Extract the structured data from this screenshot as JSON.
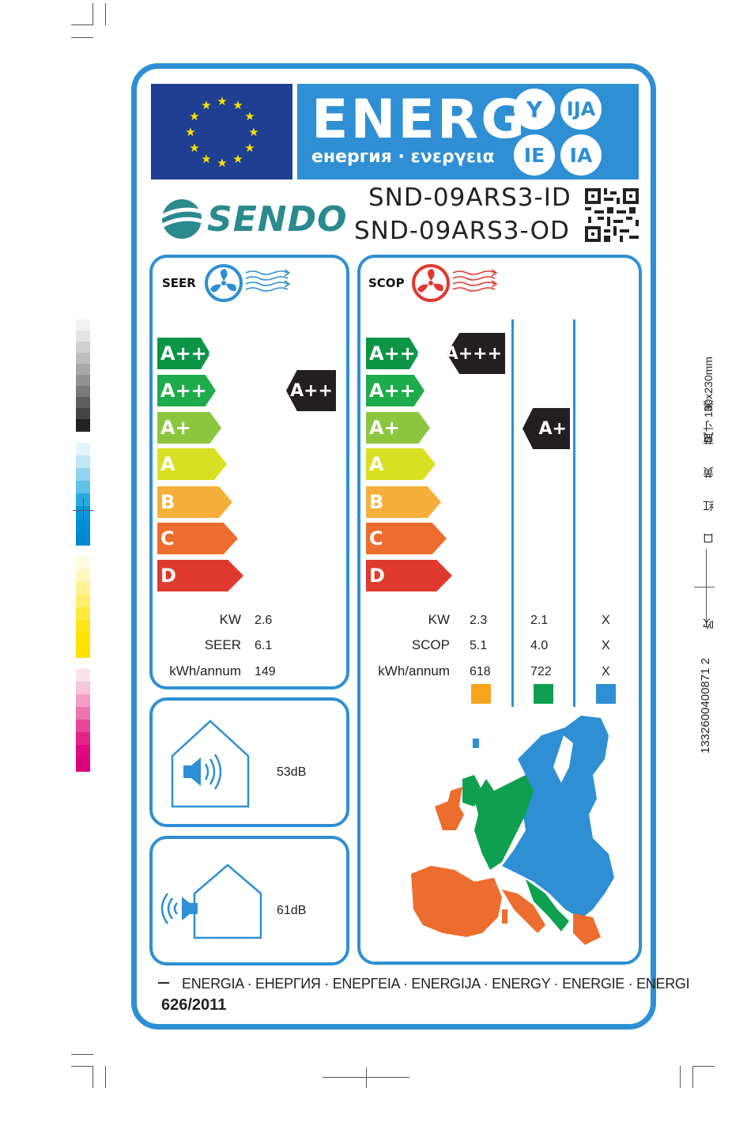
{
  "header": {
    "energy_word": "ENERG",
    "energy_subtitle": "енергия · ενεργεια",
    "suffixes": [
      "Y",
      "IJA",
      "IE",
      "IA"
    ],
    "eu_flag_color": "#1f3f93",
    "banner_color": "#2e8fd4"
  },
  "brand": {
    "name": "SENDO"
  },
  "models": {
    "indoor": "SND-09ARS3-ID",
    "outdoor": "SND-09ARS3-OD"
  },
  "scale": [
    {
      "label": "A+++",
      "color": "#0c9447"
    },
    {
      "label": "A++",
      "color": "#1eab4b"
    },
    {
      "label": "A+",
      "color": "#8cc63f"
    },
    {
      "label": "A",
      "color": "#d9e021"
    },
    {
      "label": "B",
      "color": "#f6af3b"
    },
    {
      "label": "C",
      "color": "#ec6d2d"
    },
    {
      "label": "D",
      "color": "#e03a30"
    }
  ],
  "seer": {
    "title": "SEER",
    "rating": "A++",
    "labels": {
      "kw": "KW",
      "efficiency": "SEER",
      "energy": "kWh/annum"
    },
    "values": {
      "kw": "2.6",
      "efficiency": "6.1",
      "energy": "149"
    }
  },
  "scop": {
    "title": "SCOP",
    "ratings": [
      "A+++",
      "A+"
    ],
    "labels": {
      "kw": "KW",
      "efficiency": "SCOP",
      "energy": "kWh/annum"
    },
    "columns": [
      {
        "kw": "2.3",
        "efficiency": "5.1",
        "energy": "618",
        "color": "#f6a51d"
      },
      {
        "kw": "2.1",
        "efficiency": "4.0",
        "energy": "722",
        "color": "#0ea050"
      },
      {
        "kw": "X",
        "efficiency": "X",
        "energy": "X",
        "color": "#2e8fd4"
      }
    ]
  },
  "noise": {
    "indoor": "53dB",
    "outdoor": "61dB"
  },
  "footer": {
    "languages": "ENERGIA · ЕНЕРГИЯ · ΕΝΕΡΓΕΙΑ · ENERGIJA · ENERGY · ENERGIE · ENERGI",
    "regulation": "626/2011"
  },
  "print_marks": {
    "size_text": "尺寸 130x230mm",
    "colors_text": "口 红 黄 蓝 黑",
    "barcode_text": "1332600400871 2",
    "barcode_suffix": "吹"
  }
}
